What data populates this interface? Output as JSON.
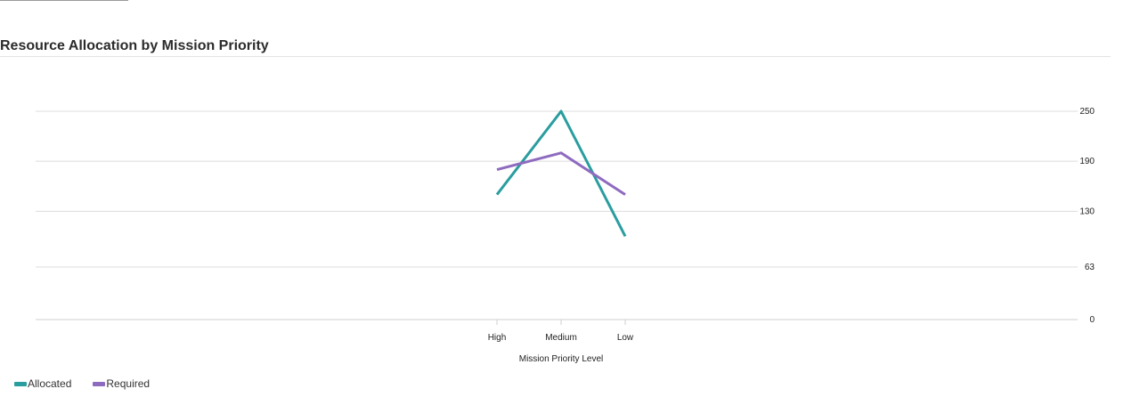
{
  "chart_data": {
    "type": "line",
    "title": "Resource Allocation by Mission Priority",
    "xlabel": "Mission Priority Level",
    "ylabel": "",
    "categories": [
      "High",
      "Medium",
      "Low"
    ],
    "series": [
      {
        "name": "Allocated",
        "color": "#2a9d9f",
        "values": [
          150,
          250,
          100
        ]
      },
      {
        "name": "Required",
        "color": "#8e6bbf",
        "values": [
          180,
          200,
          150
        ]
      }
    ],
    "ylim": [
      0,
      250
    ],
    "yticks": [
      0,
      63,
      130,
      190,
      250
    ],
    "y_axis_side": "right",
    "grid": true,
    "legend": "bottom-left"
  }
}
